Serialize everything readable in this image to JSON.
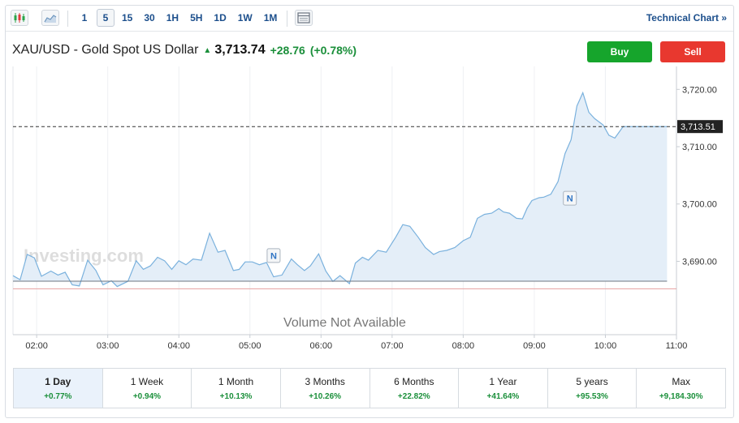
{
  "toolbar": {
    "candle_icon": "candlestick-icon",
    "area_icon": "area-chart-icon",
    "layout_icon": "chart-layout-icon",
    "intervals": [
      "1",
      "5",
      "15",
      "30",
      "1H",
      "5H",
      "1D",
      "1W",
      "1M"
    ],
    "active_interval": "5",
    "tech_link": "Technical Chart »"
  },
  "quote": {
    "name": "XAU/USD - Gold Spot US Dollar",
    "arrow": "▲",
    "price": "3,713.74",
    "change": "+28.76",
    "change_pct": "(+0.78%)"
  },
  "buttons": {
    "buy": "Buy",
    "sell": "Sell"
  },
  "colors": {
    "up": "#1a8f3a",
    "line": "#7ab1dd",
    "fill": "#e4eef8",
    "buy": "#16a52c",
    "sell": "#e8382f",
    "prev_close": "#e7a1a1"
  },
  "chart_data": {
    "type": "area",
    "title": "",
    "xlabel": "",
    "ylabel": "",
    "x_ticks": [
      "02:00",
      "03:00",
      "04:00",
      "05:00",
      "06:00",
      "07:00",
      "08:00",
      "09:00",
      "10:00",
      "11:00"
    ],
    "y_ticks": [
      "3,720.00",
      "3,710.00",
      "3,700.00",
      "3,690.00"
    ],
    "y_tick_values": [
      3720,
      3710,
      3700,
      3690
    ],
    "ylim": [
      3677.2,
      3724
    ],
    "xlim": [
      1.667,
      11.0
    ],
    "last_price_label": "3,713.51",
    "last_price": 3713.51,
    "prev_close": 3685.2,
    "watermark": "Investing.com",
    "volume_note": "Volume Not Available",
    "grid": "vertical",
    "news_markers": [
      {
        "label": "N",
        "x": 5.333,
        "y": 3689.8
      },
      {
        "label": "N",
        "x": 9.5,
        "y": 3699.8
      }
    ],
    "series": [
      {
        "x": [
          1.667,
          1.767,
          1.867,
          1.967,
          2.067,
          2.2,
          2.3,
          2.4,
          2.5,
          2.6,
          2.717,
          2.833,
          2.933,
          3.05,
          3.133,
          3.283,
          3.4,
          3.5,
          3.6,
          3.7,
          3.8,
          3.9,
          4.0,
          4.1,
          4.2,
          4.317,
          4.433,
          4.55,
          4.65,
          4.767,
          4.85,
          4.933,
          5.033,
          5.133,
          5.233,
          5.333,
          5.45,
          5.583,
          5.667,
          5.767,
          5.85,
          5.967,
          6.067,
          6.167,
          6.267,
          6.4,
          6.483,
          6.583,
          6.667,
          6.8,
          6.917,
          7.05,
          7.15,
          7.25,
          7.367,
          7.467,
          7.583,
          7.667,
          7.767,
          7.883,
          8.0,
          8.1,
          8.2,
          8.3,
          8.4,
          8.5,
          8.567,
          8.65,
          8.75,
          8.833,
          8.9,
          8.967,
          9.067,
          9.133,
          9.233,
          9.333,
          9.433,
          9.517,
          9.6,
          9.683,
          9.767,
          9.85,
          9.967,
          10.05,
          10.133,
          10.25,
          10.317,
          10.4,
          10.5,
          10.6,
          10.7,
          10.8,
          10.867
        ],
        "y": [
          3687.5,
          3686.8,
          3691.2,
          3690.6,
          3687.4,
          3688.3,
          3687.6,
          3688.1,
          3685.9,
          3685.7,
          3690.2,
          3688.4,
          3685.9,
          3686.6,
          3685.6,
          3686.5,
          3690.1,
          3688.6,
          3689.2,
          3690.7,
          3690.1,
          3688.6,
          3690.1,
          3689.4,
          3690.4,
          3690.2,
          3694.9,
          3691.6,
          3691.9,
          3688.4,
          3688.6,
          3689.9,
          3689.9,
          3689.4,
          3689.8,
          3687.3,
          3687.6,
          3690.4,
          3689.4,
          3688.4,
          3689.2,
          3691.3,
          3688.3,
          3686.5,
          3687.5,
          3686.1,
          3689.7,
          3690.7,
          3690.2,
          3691.9,
          3691.6,
          3694.2,
          3696.4,
          3696.1,
          3694.2,
          3692.4,
          3691.2,
          3691.7,
          3691.9,
          3692.4,
          3693.6,
          3694.2,
          3697.5,
          3698.2,
          3698.4,
          3699.2,
          3698.6,
          3698.4,
          3697.5,
          3697.4,
          3699.3,
          3700.6,
          3701.1,
          3701.2,
          3701.7,
          3703.9,
          3708.8,
          3711.2,
          3717.1,
          3719.4,
          3716.0,
          3714.9,
          3713.8,
          3712.0,
          3711.5,
          3713.51,
          3713.51,
          3713.51,
          3713.51,
          3713.51,
          3713.51,
          3713.51,
          3713.51
        ]
      }
    ]
  },
  "periods": [
    {
      "label": "1 Day",
      "change": "+0.77%"
    },
    {
      "label": "1 Week",
      "change": "+0.94%"
    },
    {
      "label": "1 Month",
      "change": "+10.13%"
    },
    {
      "label": "3 Months",
      "change": "+10.26%"
    },
    {
      "label": "6 Months",
      "change": "+22.82%"
    },
    {
      "label": "1 Year",
      "change": "+41.64%"
    },
    {
      "label": "5 years",
      "change": "+95.53%"
    },
    {
      "label": "Max",
      "change": "+9,184.30%"
    }
  ],
  "active_period": 0
}
